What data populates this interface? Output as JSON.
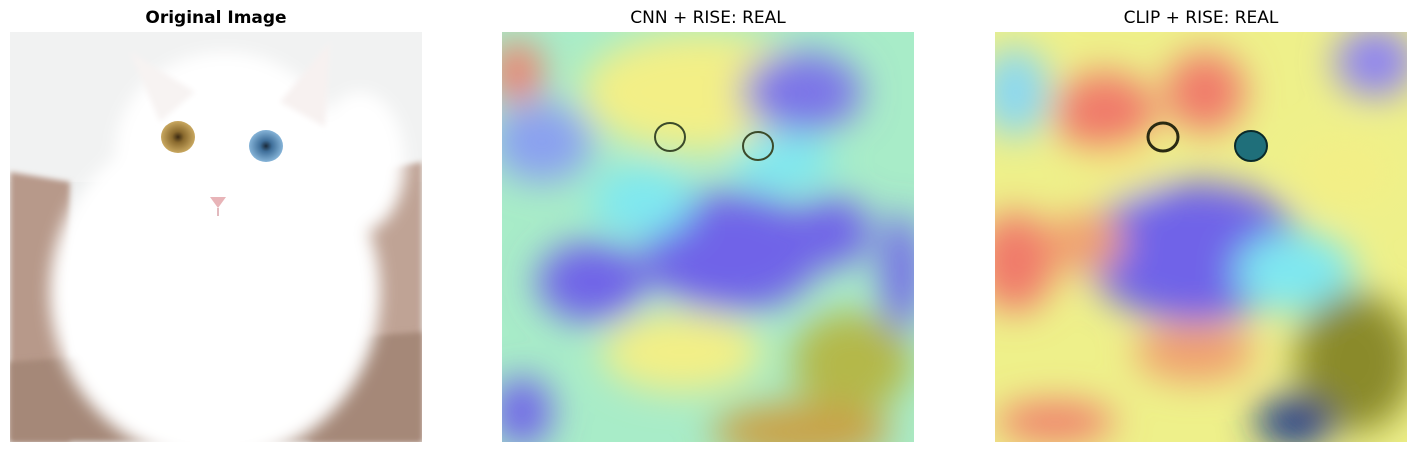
{
  "panels": [
    {
      "title": "Original Image",
      "image": "white cat with heterochromatic eyes (amber left, blue right) on wooden floor"
    },
    {
      "title": "CNN + RISE: REAL",
      "image": "cat image overlaid with RISE saliency heatmap (jet colormap)"
    },
    {
      "title": "CLIP + RISE: REAL",
      "image": "cat image overlaid with RISE saliency heatmap (jet colormap)"
    }
  ],
  "colors": {
    "background": "#ffffff",
    "heat_blue": "#6a5cf0",
    "heat_cyan": "#7fe8f0",
    "heat_yellow": "#f6f07a",
    "heat_red": "#f07a6a"
  }
}
